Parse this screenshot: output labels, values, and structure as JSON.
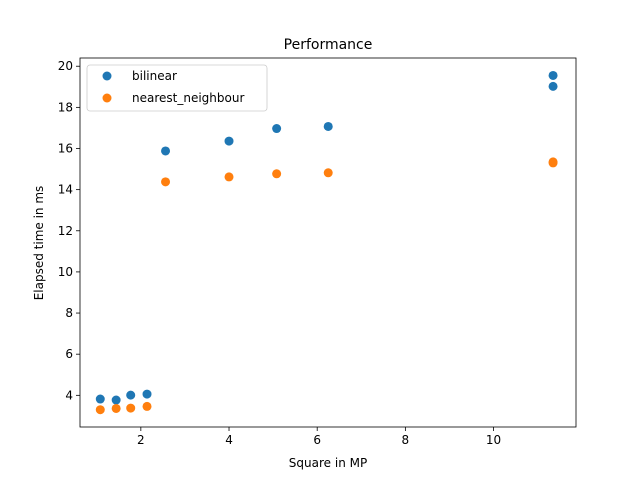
{
  "chart_data": {
    "type": "scatter",
    "title": "Performance",
    "xlabel": "Square in MP",
    "ylabel": "Elapsed time in ms",
    "xlim": [
      0.62,
      11.87
    ],
    "ylim": [
      2.46,
      20.4
    ],
    "xticks": [
      2,
      4,
      6,
      8,
      10
    ],
    "yticks": [
      4,
      6,
      8,
      10,
      12,
      14,
      16,
      18,
      20
    ],
    "grid": false,
    "legend_position": "top-left",
    "series": [
      {
        "name": "bilinear",
        "color": "#1f77b4",
        "points": [
          {
            "x": 1.08,
            "y": 3.82
          },
          {
            "x": 1.44,
            "y": 3.77
          },
          {
            "x": 1.77,
            "y": 4.01
          },
          {
            "x": 2.14,
            "y": 4.06
          },
          {
            "x": 2.56,
            "y": 15.88
          },
          {
            "x": 4.0,
            "y": 16.36
          },
          {
            "x": 5.08,
            "y": 16.97
          },
          {
            "x": 6.25,
            "y": 17.07
          },
          {
            "x": 11.35,
            "y": 19.55
          },
          {
            "x": 11.35,
            "y": 19.02
          }
        ]
      },
      {
        "name": "nearest_neighbour",
        "color": "#ff7f0e",
        "points": [
          {
            "x": 1.08,
            "y": 3.3
          },
          {
            "x": 1.44,
            "y": 3.36
          },
          {
            "x": 1.77,
            "y": 3.38
          },
          {
            "x": 2.14,
            "y": 3.46
          },
          {
            "x": 2.56,
            "y": 14.38
          },
          {
            "x": 4.0,
            "y": 14.62
          },
          {
            "x": 5.08,
            "y": 14.77
          },
          {
            "x": 6.25,
            "y": 14.82
          },
          {
            "x": 11.35,
            "y": 15.35
          },
          {
            "x": 11.35,
            "y": 15.3
          }
        ]
      }
    ]
  }
}
